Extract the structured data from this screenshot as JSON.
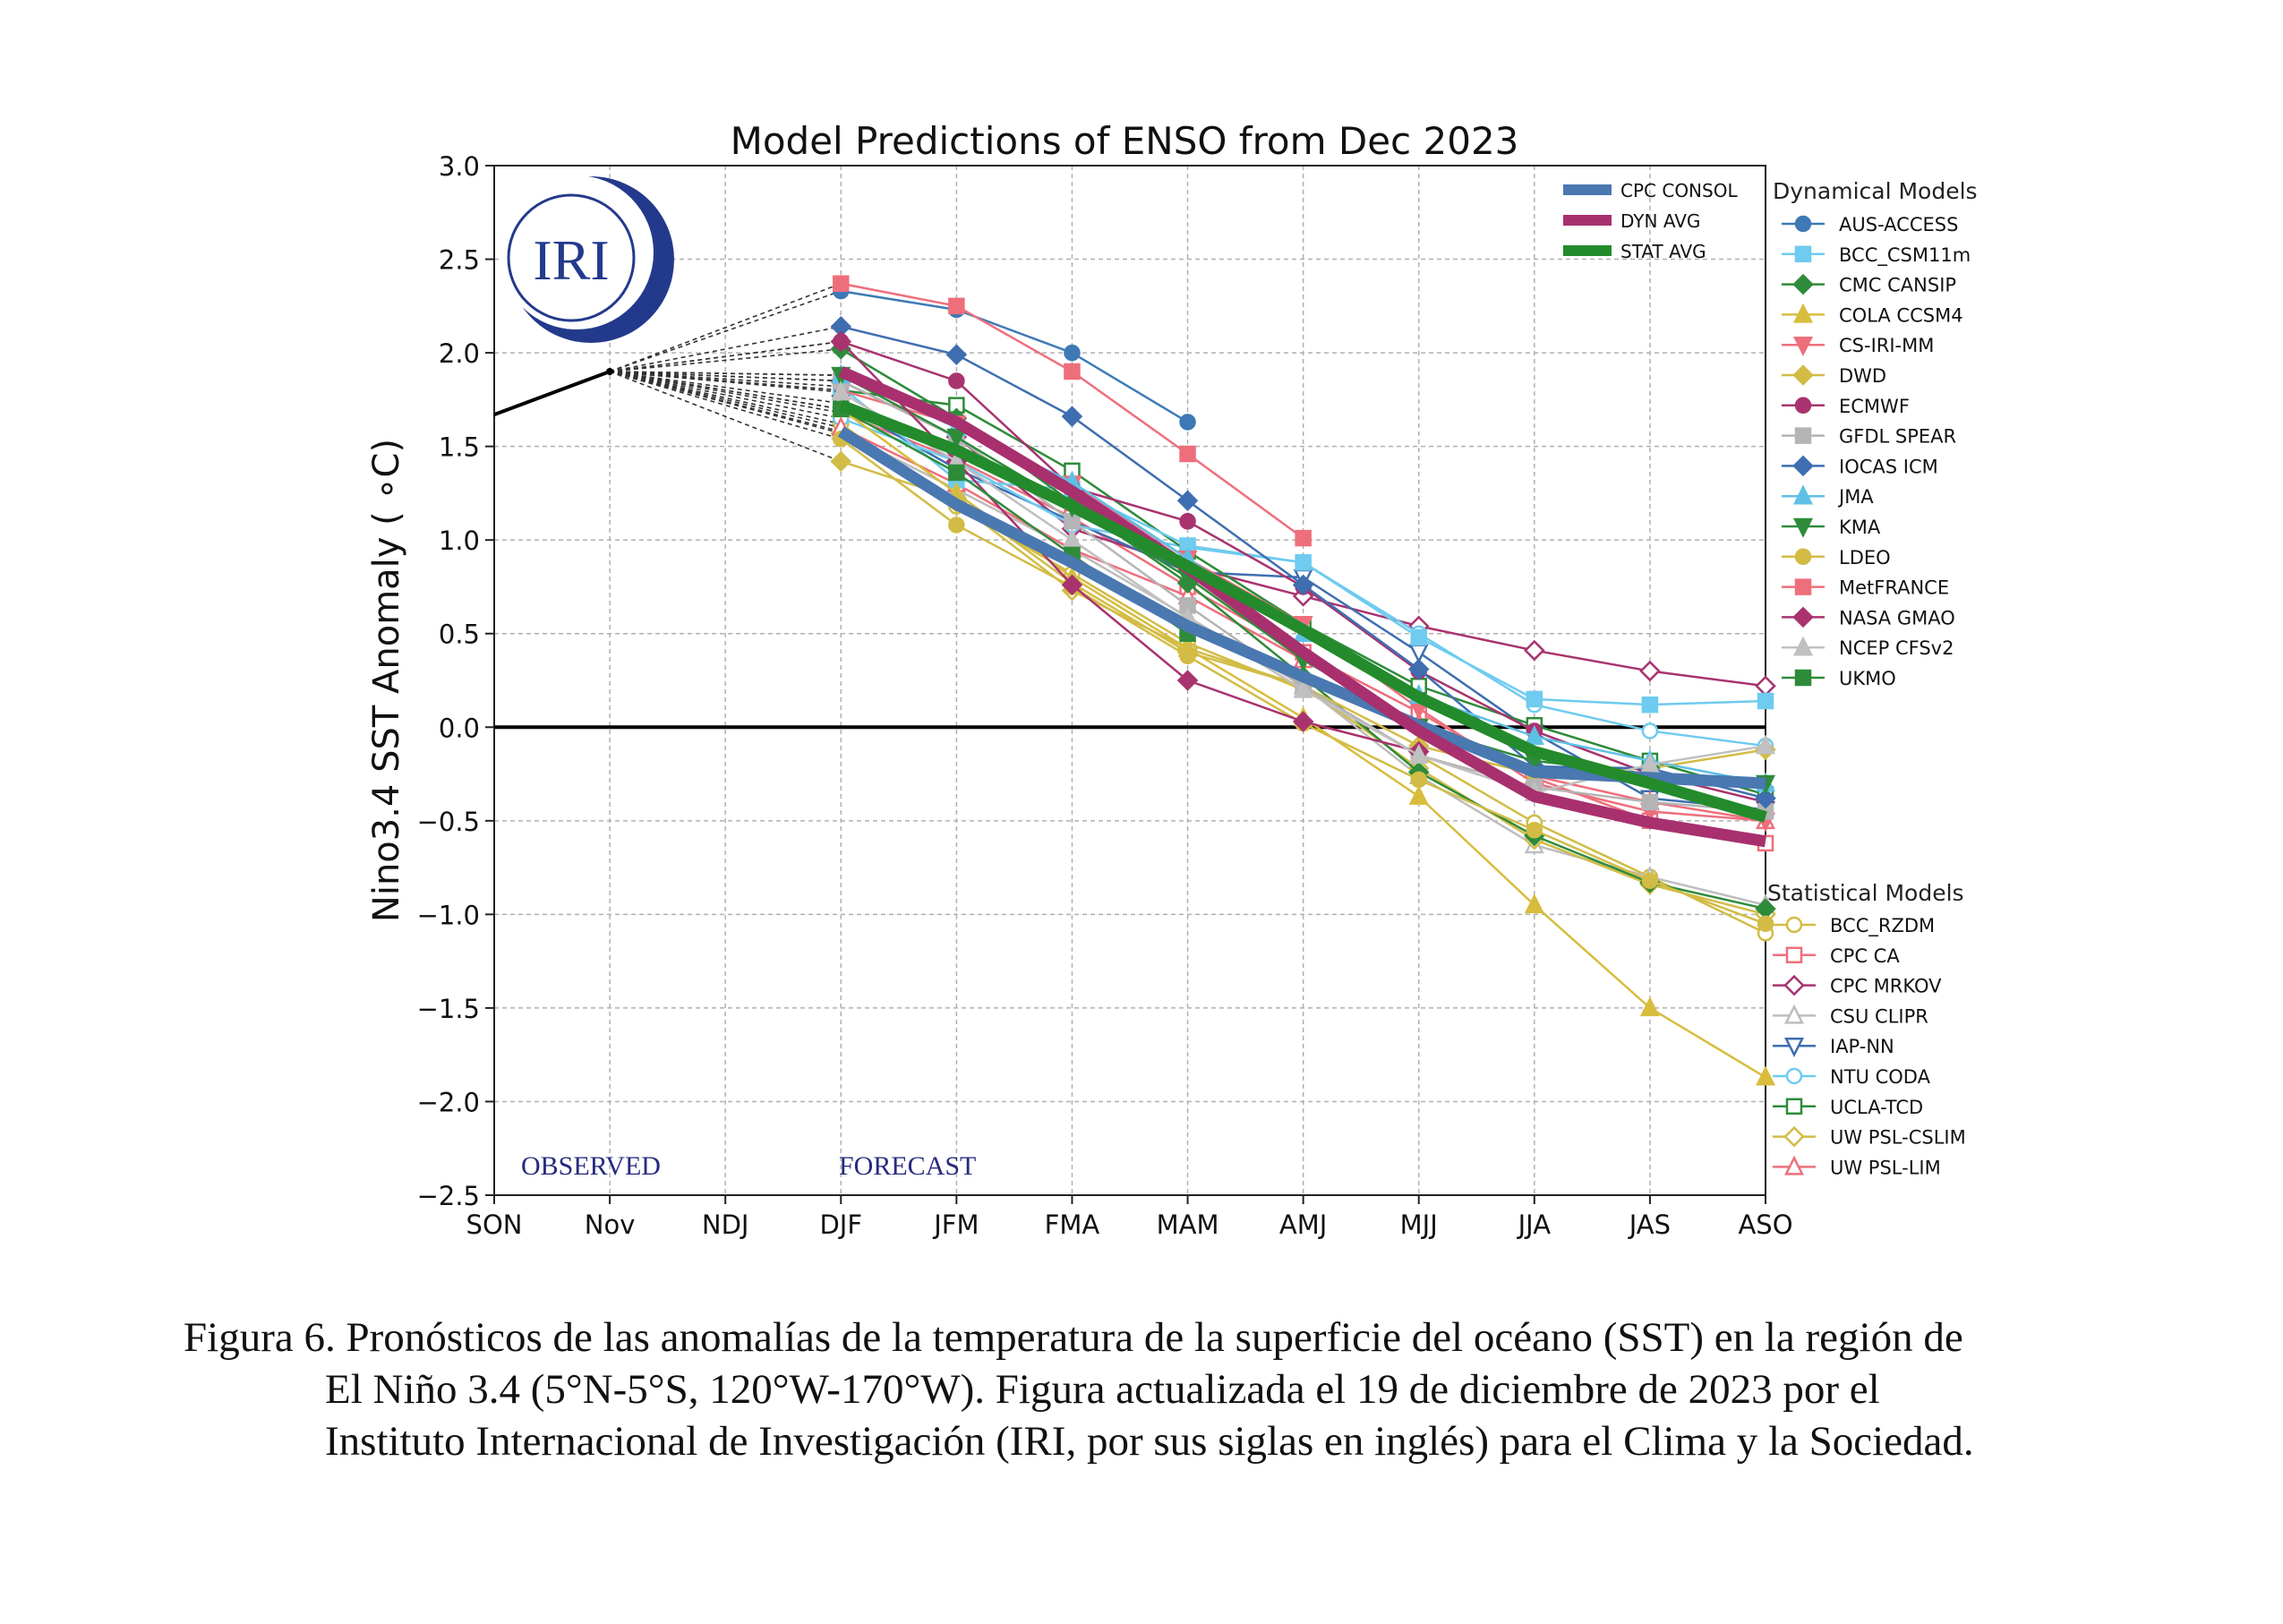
{
  "chart_data": {
    "type": "line",
    "title": "Model Predictions of ENSO from Dec 2023",
    "xlabel": "",
    "ylabel": "Nino3.4 SST Anomaly ( ∘C)",
    "categories": [
      "SON",
      "Nov",
      "NDJ",
      "DJF",
      "JFM",
      "FMA",
      "MAM",
      "AMJ",
      "MJJ",
      "JJA",
      "JAS",
      "ASO"
    ],
    "ylim": [
      -2.5,
      3.0
    ],
    "yticks": [
      "3.0",
      "2.5",
      "2.0",
      "1.5",
      "1.0",
      "0.5",
      "0.0",
      "−0.5",
      "−1.0",
      "−1.5",
      "−2.0",
      "−2.5"
    ],
    "grid": true,
    "annotations": {
      "observed": "OBSERVED",
      "forecast": "FORECAST",
      "logo": "IRI"
    },
    "observed": {
      "x": [
        "SON",
        "Nov"
      ],
      "values": [
        1.67,
        1.9
      ]
    },
    "consensus_series": [
      {
        "name": "CPC CONSOL",
        "color": "#4a78b0",
        "values": [
          1.58,
          1.19,
          0.88,
          0.54,
          0.27,
          0.01,
          -0.24,
          -0.27,
          -0.3
        ]
      },
      {
        "name": "DYN AVG",
        "color": "#a8306e",
        "values": [
          1.9,
          1.63,
          1.26,
          0.85,
          0.4,
          -0.02,
          -0.37,
          -0.51,
          -0.61
        ]
      },
      {
        "name": "STAT AVG",
        "color": "#238b2b",
        "values": [
          1.72,
          1.48,
          1.18,
          0.86,
          0.52,
          0.16,
          -0.13,
          -0.3,
          -0.48
        ]
      }
    ],
    "dynamical_legend_title": "Dynamical Models",
    "statistical_legend_title": "Statistical Models",
    "dynamical_models": [
      {
        "name": "AUS-ACCESS",
        "color": "#3e79b6",
        "marker": "circle",
        "values": [
          2.33,
          2.23,
          2.0,
          1.63
        ]
      },
      {
        "name": "BCC_CSM11m",
        "color": "#6fcbef",
        "marker": "square",
        "values": [
          1.82,
          1.32,
          1.27,
          0.97,
          0.88,
          0.48,
          0.15,
          0.12,
          0.14
        ]
      },
      {
        "name": "CMC CANSIP",
        "color": "#2e8b3a",
        "marker": "diamond",
        "values": [
          2.02,
          1.65,
          1.2,
          0.77,
          0.27,
          -0.24,
          -0.58,
          -0.83,
          -0.97
        ]
      },
      {
        "name": "COLA CCSM4",
        "color": "#d8bd3d",
        "marker": "triangle-up",
        "values": [
          1.7,
          1.25,
          0.8,
          0.42,
          0.05,
          -0.37,
          -0.95,
          -1.5,
          -1.87
        ]
      },
      {
        "name": "CS-IRI-MM",
        "color": "#ee6f7c",
        "marker": "triangle-down",
        "values": [
          1.8,
          1.62,
          1.3,
          0.9,
          0.55,
          0.1,
          -0.3,
          -0.45,
          -0.5
        ]
      },
      {
        "name": "DWD",
        "color": "#d2bc45",
        "marker": "diamond",
        "values": [
          1.42,
          1.22,
          0.77,
          0.4,
          0.22,
          -0.1,
          -0.25,
          -0.22,
          -0.12
        ]
      },
      {
        "name": "ECMWF",
        "color": "#a8336f",
        "marker": "circle",
        "values": [
          2.06,
          1.85,
          1.28,
          1.1,
          0.75,
          0.3,
          -0.02,
          -0.25,
          -0.4
        ]
      },
      {
        "name": "GFDL SPEAR",
        "color": "#b4b4b4",
        "marker": "square",
        "values": [
          1.85,
          1.55,
          1.1,
          0.65,
          0.22,
          -0.15,
          -0.32,
          -0.4,
          -0.45
        ]
      },
      {
        "name": "IOCAS ICM",
        "color": "#3e6eb0",
        "marker": "diamond",
        "values": [
          2.14,
          1.99,
          1.66,
          1.21,
          0.76,
          0.31,
          -0.21,
          -0.22,
          -0.38
        ]
      },
      {
        "name": "JMA",
        "color": "#5fc0e6",
        "marker": "triangle-up",
        "values": [
          1.88,
          1.6,
          1.31,
          0.9,
          0.5,
          0.17,
          -0.05,
          -0.18,
          -0.3
        ]
      },
      {
        "name": "KMA",
        "color": "#2e8b3a",
        "marker": "triangle-down",
        "values": [
          1.88,
          1.55,
          1.18,
          0.8,
          0.36,
          0.0,
          -0.18,
          -0.25,
          -0.3
        ]
      },
      {
        "name": "LDEO",
        "color": "#d2bc45",
        "marker": "circle",
        "values": [
          1.54,
          1.08,
          0.75,
          0.38,
          0.02,
          -0.28,
          -0.55,
          -0.82,
          -1.05
        ]
      },
      {
        "name": "MetFRANCE",
        "color": "#ee6f7c",
        "marker": "square",
        "values": [
          2.37,
          2.25,
          1.9,
          1.46,
          1.01
        ]
      },
      {
        "name": "NASA GMAO",
        "color": "#a8336f",
        "marker": "diamond",
        "values": [
          2.06,
          1.42,
          0.76,
          0.25,
          0.03,
          -0.13
        ]
      },
      {
        "name": "NCEP CFSv2",
        "color": "#c0c0c0",
        "marker": "triangle-up",
        "values": [
          1.79,
          1.42,
          1.0,
          0.58,
          0.2,
          -0.15,
          -0.35,
          -0.2,
          -0.1
        ]
      },
      {
        "name": "UKMO",
        "color": "#2e8b3a",
        "marker": "square",
        "values": [
          1.7,
          1.36,
          0.92,
          0.5
        ]
      }
    ],
    "statistical_models": [
      {
        "name": "BCC_RZDM",
        "color": "#d2bc45",
        "marker": "circle",
        "values": [
          1.62,
          1.18,
          0.82,
          0.45,
          0.2,
          -0.15,
          -0.51,
          -0.8,
          -1.1
        ]
      },
      {
        "name": "CPC CA",
        "color": "#ee6f7c",
        "marker": "square",
        "values": [
          1.68,
          1.43,
          1.12,
          0.75,
          0.4,
          0.08,
          -0.27,
          -0.5,
          -0.62
        ]
      },
      {
        "name": "CPC MRKOV",
        "color": "#a8336f",
        "marker": "diamond",
        "values": [
          1.85,
          1.55,
          1.06,
          0.86,
          0.7,
          0.54,
          0.41,
          0.3,
          0.22
        ]
      },
      {
        "name": "CSU CLIPR",
        "color": "#bdbdbd",
        "marker": "triangle-up",
        "values": [
          1.58,
          1.27,
          0.95,
          0.59,
          0.22,
          -0.26,
          -0.63,
          -0.8,
          -0.95
        ]
      },
      {
        "name": "IAP-NN",
        "color": "#3e6eb0",
        "marker": "triangle-down",
        "values": [
          1.73,
          1.38,
          1.1,
          0.83,
          0.8,
          0.4,
          -0.03,
          -0.38,
          -0.44
        ]
      },
      {
        "name": "NTU CODA",
        "color": "#6fcbef",
        "marker": "circle",
        "values": [
          1.65,
          1.42,
          1.08,
          0.96,
          0.88,
          0.5,
          0.12,
          -0.02,
          -0.1
        ]
      },
      {
        "name": "UCLA-TCD",
        "color": "#2e8b3a",
        "marker": "square",
        "values": [
          1.8,
          1.72,
          1.37,
          0.94,
          0.55,
          0.22,
          0.01,
          -0.18,
          -0.36
        ]
      },
      {
        "name": "UW PSL-CSLIM",
        "color": "#d2bc45",
        "marker": "diamond",
        "values": [
          1.57,
          1.2,
          0.73,
          0.42,
          0.22,
          -0.22,
          -0.6,
          -0.84,
          -1.0
        ]
      },
      {
        "name": "UW PSL-LIM",
        "color": "#ee6f7c",
        "marker": "triangle-up",
        "values": [
          1.6,
          1.3,
          0.95,
          0.7,
          0.36,
          0.02,
          -0.26,
          -0.4,
          -0.5
        ]
      }
    ]
  },
  "caption": {
    "line1": "Figura 6. Pronósticos de las anomalías de la temperatura de la superficie del océano (SST) en la región de",
    "line2": "El Niño 3.4 (5°N-5°S, 120°W-170°W). Figura actualizada el 19 de diciembre de 2023 por el",
    "line3": "Instituto Internacional de Investigación (IRI, por sus siglas en inglés) para el Clima y la Sociedad."
  }
}
